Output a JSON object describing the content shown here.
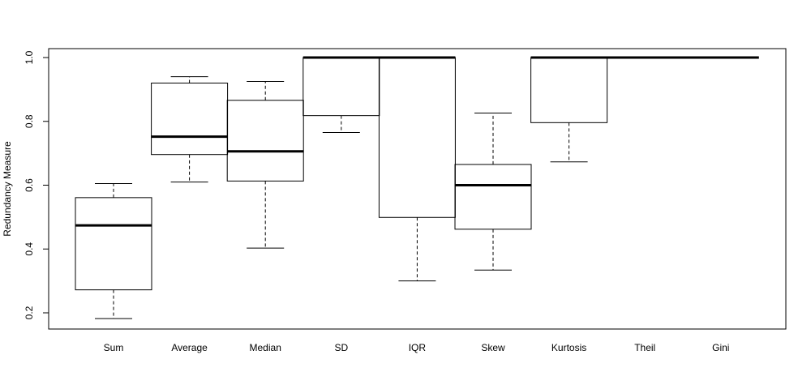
{
  "chart_data": {
    "type": "boxplot",
    "title": "",
    "xlabel": "",
    "ylabel": "Redundancy Measure",
    "ylim": [
      0.15,
      1.03
    ],
    "yticks": [
      0.2,
      0.4,
      0.6,
      0.8,
      1.0
    ],
    "ytick_labels": [
      "0.2",
      "0.4",
      "0.6",
      "0.8",
      "1.0"
    ],
    "grid": false,
    "legend": "none",
    "categories": [
      "Sum",
      "Average",
      "Median",
      "SD",
      "IQR",
      "Skew",
      "Kurtosis",
      "Theil",
      "Gini"
    ],
    "boxes": [
      {
        "label": "Sum",
        "whisker_low": 0.182,
        "q1": 0.272,
        "median": 0.474,
        "q3": 0.561,
        "whisker_high": 0.605
      },
      {
        "label": "Average",
        "whisker_low": 0.61,
        "q1": 0.696,
        "median": 0.752,
        "q3": 0.92,
        "whisker_high": 0.94
      },
      {
        "label": "Median",
        "whisker_low": 0.403,
        "q1": 0.613,
        "median": 0.706,
        "q3": 0.866,
        "whisker_high": 0.925
      },
      {
        "label": "SD",
        "whisker_low": 0.765,
        "q1": 0.818,
        "median": 1.0,
        "q3": 1.0,
        "whisker_high": 1.0
      },
      {
        "label": "IQR",
        "whisker_low": 0.3,
        "q1": 0.499,
        "median": 1.0,
        "q3": 1.0,
        "whisker_high": 1.0
      },
      {
        "label": "Skew",
        "whisker_low": 0.334,
        "q1": 0.462,
        "median": 0.6,
        "q3": 0.665,
        "whisker_high": 0.826
      },
      {
        "label": "Kurtosis",
        "whisker_low": 0.673,
        "q1": 0.796,
        "median": 1.0,
        "q3": 1.0,
        "whisker_high": 1.0
      },
      {
        "label": "Theil",
        "whisker_low": 1.0,
        "q1": 1.0,
        "median": 1.0,
        "q3": 1.0,
        "whisker_high": 1.0
      },
      {
        "label": "Gini",
        "whisker_low": 1.0,
        "q1": 1.0,
        "median": 1.0,
        "q3": 1.0,
        "whisker_high": 1.0
      }
    ]
  }
}
